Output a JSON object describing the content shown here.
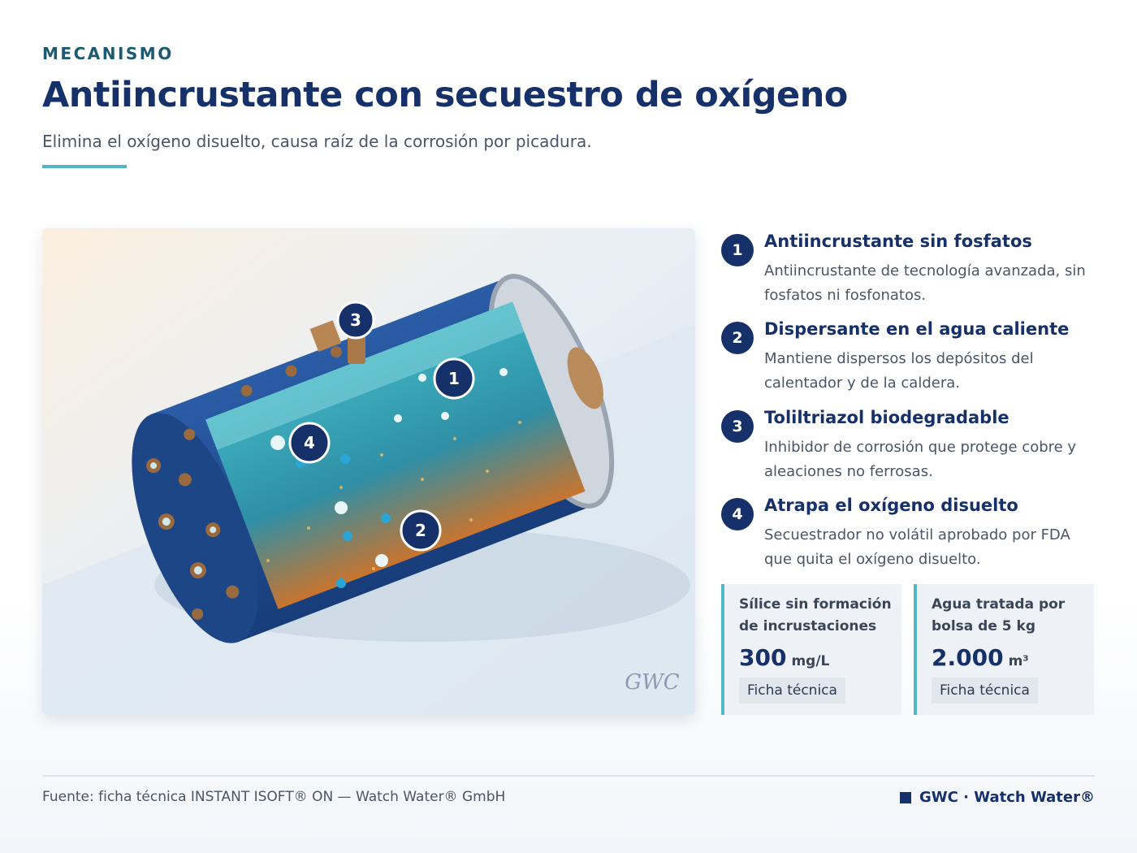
{
  "header": {
    "eyebrow": "MECANISMO",
    "title": "Antiincrustante con secuestro de oxígeno",
    "subtitle": "Elimina el oxígeno disuelto, causa raíz de la corrosión por picadura."
  },
  "figure": {
    "watermark": "GWC"
  },
  "items": [
    {
      "number": "1",
      "title": "Antiincrustante sin fosfatos",
      "description": "Antiincrustante de tecnología avanzada, sin fosfatos ni fosfonatos."
    },
    {
      "number": "2",
      "title": "Dispersante en el agua caliente",
      "description": "Mantiene dispersos los depósitos del calentador y de la caldera."
    },
    {
      "number": "3",
      "title": "Toliltriazol biodegradable",
      "description": "Inhibidor de corrosión que protege cobre y aleaciones no ferrosas."
    },
    {
      "number": "4",
      "title": "Atrapa el oxígeno disuelto",
      "description": "Secuestrador no volátil aprobado por FDA que quita el oxígeno disuelto."
    }
  ],
  "stats": [
    {
      "label": "Sílice sin formación de incrustaciones",
      "value": "300",
      "unit": "mg/L",
      "tag": "Ficha técnica"
    },
    {
      "label": "Agua tratada por bolsa de 5 kg",
      "value": "2.000",
      "unit": "m³",
      "tag": "Ficha técnica"
    }
  ],
  "footer": {
    "source": "Fuente: ficha técnica INSTANT ISOFT® ON — Watch Water® GmbH",
    "brand": "GWC · Watch Water®"
  }
}
